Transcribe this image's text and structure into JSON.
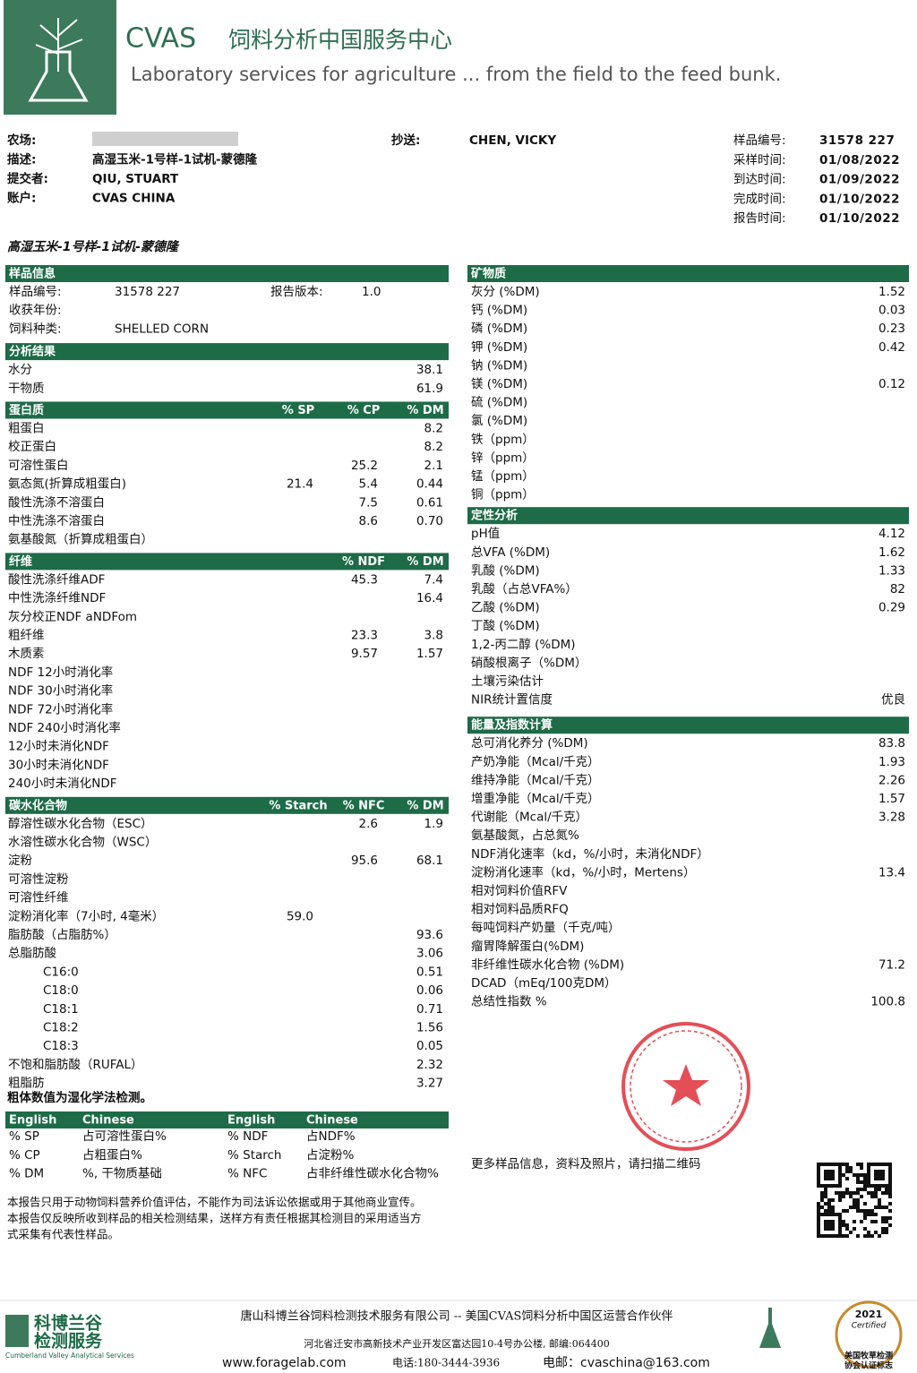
{
  "header": {
    "brand": "CVAS",
    "title_cn": "饲料分析中国服务中心",
    "tagline": "Laboratory services for agriculture ... from the field to the feed bunk."
  },
  "meta": {
    "left": [
      [
        "农场:",
        null
      ],
      [
        "描述:",
        "高湿玉米-1号样-1试机-蒙德隆"
      ],
      [
        "提交者:",
        "QIU, STUART"
      ],
      [
        "账户:",
        "CVAS CHINA"
      ]
    ],
    "cc": [
      "抄送:",
      "CHEN, VICKY"
    ],
    "right": [
      [
        "样品编号:",
        "31578 227"
      ],
      [
        "采样时间:",
        "01/08/2022"
      ],
      [
        "到达时间:",
        "01/09/2022"
      ],
      [
        "完成时间:",
        "01/10/2022"
      ],
      [
        "报告时间:",
        "01/10/2022"
      ]
    ]
  },
  "sample_title": "高湿玉米-1号样-1试机-蒙德隆",
  "sample_info": {
    "title": "样品信息",
    "rows": [
      [
        "样品编号:",
        "31578 227",
        "报告版本:",
        "1.0"
      ],
      [
        "收获年份:",
        null,
        null,
        null
      ],
      [
        "饲料种类:",
        "SHELLED CORN",
        null,
        null
      ]
    ]
  },
  "left_sections": [
    {
      "title": "分析结果",
      "cols": [
        null,
        null,
        null
      ],
      "rows": [
        [
          "水分",
          null,
          null,
          "38.1"
        ],
        [
          "干物质",
          null,
          null,
          "61.9"
        ]
      ]
    },
    {
      "title": "蛋白质",
      "cols": [
        "% SP",
        "% CP",
        "% DM"
      ],
      "rows": [
        [
          "粗蛋白",
          null,
          null,
          "8.2"
        ],
        [
          "校正蛋白",
          null,
          null,
          "8.2"
        ],
        [
          "可溶性蛋白",
          null,
          "25.2",
          "2.1"
        ],
        [
          "氨态氮(折算成粗蛋白)",
          "21.4",
          "5.4",
          "0.44"
        ],
        [
          "酸性洗涤不溶蛋白",
          null,
          "7.5",
          "0.61"
        ],
        [
          "中性洗涤不溶蛋白",
          null,
          "8.6",
          "0.70"
        ],
        [
          "氨基酸氮（折算成粗蛋白）",
          null,
          null,
          null
        ]
      ]
    },
    {
      "title": "纤维",
      "cols": [
        null,
        "% NDF",
        "% DM"
      ],
      "rows": [
        [
          "酸性洗涤纤维ADF",
          null,
          "45.3",
          "7.4"
        ],
        [
          "中性洗涤纤维NDF",
          null,
          null,
          "16.4"
        ],
        [
          "灰分校正NDF aNDFom",
          null,
          null,
          null
        ],
        [
          "粗纤维",
          null,
          "23.3",
          "3.8"
        ],
        [
          "木质素",
          null,
          "9.57",
          "1.57"
        ],
        [
          "NDF 12小时消化率",
          null,
          null,
          null
        ],
        [
          "NDF 30小时消化率",
          null,
          null,
          null
        ],
        [
          "NDF 72小时消化率",
          null,
          null,
          null
        ],
        [
          "NDF 240小时消化率",
          null,
          null,
          null
        ],
        [
          "12小时未消化NDF",
          null,
          null,
          null
        ],
        [
          "30小时未消化NDF",
          null,
          null,
          null
        ],
        [
          "240小时未消化NDF",
          null,
          null,
          null
        ]
      ]
    },
    {
      "title": "碳水化合物",
      "cols": [
        "% Starch",
        "% NFC",
        "% DM"
      ],
      "rows": [
        [
          "醇溶性碳水化合物（ESC）",
          null,
          "2.6",
          "1.9"
        ],
        [
          "水溶性碳水化合物（WSC）",
          null,
          null,
          null
        ],
        [
          "淀粉",
          null,
          "95.6",
          "68.1"
        ],
        [
          "可溶性淀粉",
          null,
          null,
          null
        ],
        [
          "可溶性纤维",
          null,
          null,
          null
        ],
        [
          "淀粉消化率（7小时, 4毫米）",
          "59.0",
          null,
          null
        ],
        [
          "脂肪酸（占脂肪%）",
          null,
          null,
          "93.6"
        ],
        [
          "总脂肪酸",
          null,
          null,
          "3.06"
        ],
        [
          "C16:0",
          null,
          null,
          "0.51"
        ],
        [
          "C18:0",
          null,
          null,
          "0.06"
        ],
        [
          "C18:1",
          null,
          null,
          "0.71"
        ],
        [
          "C18:2",
          null,
          null,
          "1.56"
        ],
        [
          "C18:3",
          null,
          null,
          "0.05"
        ],
        [
          "不饱和脂肪酸（RUFAL）",
          null,
          null,
          "2.32"
        ],
        [
          "粗脂肪",
          null,
          null,
          "3.27"
        ]
      ]
    }
  ],
  "right_sections": [
    {
      "title": "矿物质",
      "rows": [
        [
          "灰分 (%DM)",
          "1.52"
        ],
        [
          "钙 (%DM)",
          "0.03"
        ],
        [
          "磷 (%DM)",
          "0.23"
        ],
        [
          "钾 (%DM)",
          "0.42"
        ],
        [
          "钠 (%DM)",
          null
        ],
        [
          "镁 (%DM)",
          "0.12"
        ],
        [
          "硫 (%DM)",
          null
        ],
        [
          "氯 (%DM)",
          null
        ],
        [
          "铁（ppm）",
          null
        ],
        [
          "锌（ppm）",
          null
        ],
        [
          "锰（ppm）",
          null
        ],
        [
          "铜（ppm）",
          null
        ]
      ]
    },
    {
      "title": "定性分析",
      "rows": [
        [
          "pH值",
          "4.12"
        ],
        [
          "总VFA (%DM)",
          "1.62"
        ],
        [
          "乳酸 (%DM)",
          "1.33"
        ],
        [
          "乳酸（占总VFA%）",
          "82"
        ],
        [
          "乙酸 (%DM)",
          "0.29"
        ],
        [
          "丁酸 (%DM)",
          null
        ],
        [
          "1,2-丙二醇 (%DM)",
          null
        ],
        [
          "硝酸根离子（%DM）",
          null
        ],
        [
          "土壤污染估计",
          null
        ],
        [
          "NIR统计置信度",
          "优良"
        ]
      ]
    },
    {
      "title": "能量及指数计算",
      "rows": [
        [
          "总可消化养分 (%DM)",
          "83.8"
        ],
        [
          "产奶净能（Mcal/千克）",
          "1.93"
        ],
        [
          "维持净能（Mcal/千克）",
          "2.26"
        ],
        [
          "增重净能（Mcal/千克）",
          "1.57"
        ],
        [
          "代谢能（Mcal/千克）",
          "3.28"
        ],
        [
          "氨基酸氮，占总氮%",
          null
        ],
        [
          "NDF消化速率（kd，%/小时，未消化NDF）",
          null
        ],
        [
          "淀粉消化速率（kd，%/小时，Mertens）",
          "13.4"
        ],
        [
          "相对饲料价值RFV",
          null
        ],
        [
          "相对饲料品质RFQ",
          null
        ],
        [
          "每吨饲料产奶量（千克/吨）",
          null
        ],
        [
          "瘤胃降解蛋白(%DM)",
          null
        ],
        [
          "非纤维性碳水化合物 (%DM)",
          "71.2"
        ],
        [
          "DCAD（mEq/100克DM）",
          null
        ],
        [
          "总结性指数 %",
          "100.8"
        ]
      ]
    }
  ],
  "footnote": "粗体数值为湿化学法检测。",
  "glossary": {
    "header": [
      "English",
      "Chinese",
      "English",
      "Chinese"
    ],
    "rows": [
      [
        "% SP",
        "占可溶性蛋白%",
        "% NDF",
        "占NDF%"
      ],
      [
        "% CP",
        "占粗蛋白%",
        "% Starch",
        "占淀粉%"
      ],
      [
        "% DM",
        "%, 干物质基础",
        "% NFC",
        "占非纤维性碳水化合物%"
      ]
    ]
  },
  "disclaimer": [
    "本报告只用于动物饲料营养价值评估，不能作为司法诉讼依据或用于其他商业宣传。",
    "本报告仅反映所收到样品的相关检测结果，送样方有责任根据其检测目的采用适当方",
    "式采集有代表性样品。"
  ],
  "qr_note": "更多样品信息，资料及照片，请扫描二维码",
  "footer": {
    "logo_cn1": "科博兰谷",
    "logo_cn2": "检测服务",
    "logo_en": "Cumberland Valley Analytical Services",
    "company": "唐山科博兰谷饲料检测技术服务有限公司 -- 美国CVAS饲料分析中国区运营合作伙伴",
    "address": "河北省迁安市高新技术产业开发区富达园10-4号办公楼, 邮编:064400",
    "web": "www.foragelab.com",
    "phone": "电话:180-3444-3936",
    "email": "电邮：cvaschina@163.com",
    "badge_year": "2021",
    "badge_cert": "Certified",
    "badge_cn1": "美国牧草检测",
    "badge_cn2": "协会认证标志"
  }
}
